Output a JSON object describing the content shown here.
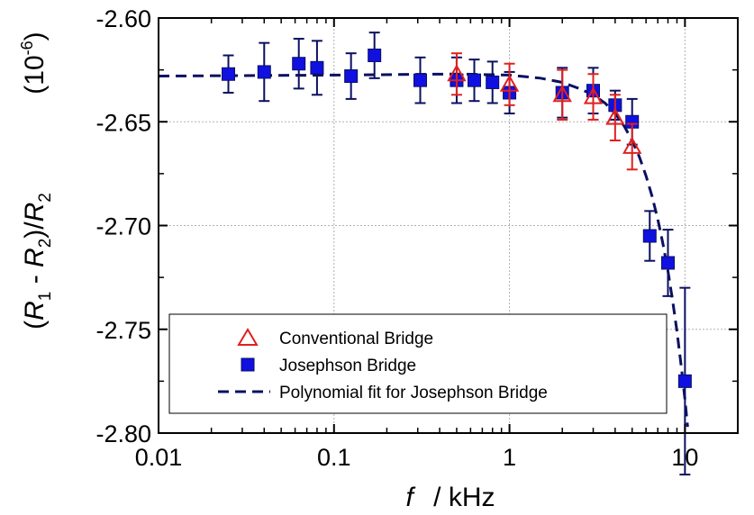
{
  "chart_data": {
    "type": "scatter",
    "x_scale": "log",
    "xlim": [
      0.01,
      20
    ],
    "ylim": [
      -2.8,
      -2.6
    ],
    "grid": true,
    "x_ticks": [
      {
        "value": 0.01,
        "label": "0.01"
      },
      {
        "value": 0.1,
        "label": "0.1"
      },
      {
        "value": 1,
        "label": "1"
      },
      {
        "value": 10,
        "label": "10"
      }
    ],
    "y_ticks": [
      {
        "value": -2.6,
        "label": "-2.60"
      },
      {
        "value": -2.65,
        "label": "-2.65"
      },
      {
        "value": -2.7,
        "label": "-2.70"
      },
      {
        "value": -2.75,
        "label": "-2.75"
      },
      {
        "value": -2.8,
        "label": "-2.80"
      }
    ],
    "xlabel": {
      "var": "f",
      "unit": "/ kHz"
    },
    "ylabel": {
      "open": "(",
      "r1": "R",
      "sub1": "1",
      "minus": " - ",
      "r2": "R",
      "sub2": "2",
      "close": ")/",
      "r3": "R",
      "sub3": "2"
    },
    "yunit": {
      "base": "(10",
      "exp": "-6",
      "close": ")"
    },
    "legend_position": "bottom-left",
    "series": [
      {
        "name": "Conventional Bridge",
        "marker": "open-triangle",
        "color": "#e02020",
        "points": [
          {
            "x": 0.5,
            "y": -2.627,
            "err": 0.01
          },
          {
            "x": 1.0,
            "y": -2.632,
            "err": 0.01
          },
          {
            "x": 2.0,
            "y": -2.637,
            "err": 0.012
          },
          {
            "x": 3.0,
            "y": -2.638,
            "err": 0.011
          },
          {
            "x": 4.0,
            "y": -2.648,
            "err": 0.011
          },
          {
            "x": 5.0,
            "y": -2.662,
            "err": 0.011
          }
        ]
      },
      {
        "name": "Josephson Bridge",
        "marker": "filled-square",
        "color": "#1010e0",
        "points": [
          {
            "x": 0.025,
            "y": -2.627,
            "err": 0.009
          },
          {
            "x": 0.04,
            "y": -2.626,
            "err": 0.014
          },
          {
            "x": 0.063,
            "y": -2.622,
            "err": 0.012
          },
          {
            "x": 0.08,
            "y": -2.624,
            "err": 0.013
          },
          {
            "x": 0.125,
            "y": -2.628,
            "err": 0.011
          },
          {
            "x": 0.17,
            "y": -2.618,
            "err": 0.011
          },
          {
            "x": 0.31,
            "y": -2.63,
            "err": 0.011
          },
          {
            "x": 0.5,
            "y": -2.63,
            "err": 0.011
          },
          {
            "x": 0.63,
            "y": -2.63,
            "err": 0.01
          },
          {
            "x": 0.8,
            "y": -2.631,
            "err": 0.01
          },
          {
            "x": 1.0,
            "y": -2.636,
            "err": 0.01
          },
          {
            "x": 2.0,
            "y": -2.636,
            "err": 0.012
          },
          {
            "x": 3.0,
            "y": -2.635,
            "err": 0.011
          },
          {
            "x": 4.0,
            "y": -2.642,
            "err": 0.007
          },
          {
            "x": 5.0,
            "y": -2.65,
            "err": 0.011
          },
          {
            "x": 6.3,
            "y": -2.705,
            "err": 0.012
          },
          {
            "x": 8.0,
            "y": -2.718,
            "err": 0.016
          },
          {
            "x": 10.0,
            "y": -2.775,
            "err": 0.045
          }
        ]
      },
      {
        "name": "Polynomial fit for Josephson Bridge",
        "marker": "dashed-line",
        "color": "#0a1060",
        "points": [
          {
            "x": 0.01,
            "y": -2.628
          },
          {
            "x": 0.1,
            "y": -2.6275
          },
          {
            "x": 0.5,
            "y": -2.627
          },
          {
            "x": 1.0,
            "y": -2.6275
          },
          {
            "x": 1.5,
            "y": -2.629
          },
          {
            "x": 2.0,
            "y": -2.631
          },
          {
            "x": 2.5,
            "y": -2.634
          },
          {
            "x": 3.0,
            "y": -2.637
          },
          {
            "x": 3.5,
            "y": -2.641
          },
          {
            "x": 4.0,
            "y": -2.646
          },
          {
            "x": 4.5,
            "y": -2.652
          },
          {
            "x": 5.0,
            "y": -2.659
          },
          {
            "x": 5.5,
            "y": -2.667
          },
          {
            "x": 6.0,
            "y": -2.676
          },
          {
            "x": 6.5,
            "y": -2.686
          },
          {
            "x": 7.0,
            "y": -2.697
          },
          {
            "x": 7.5,
            "y": -2.709
          },
          {
            "x": 8.0,
            "y": -2.722
          },
          {
            "x": 8.5,
            "y": -2.736
          },
          {
            "x": 9.0,
            "y": -2.751
          },
          {
            "x": 9.5,
            "y": -2.767
          },
          {
            "x": 10.0,
            "y": -2.784
          },
          {
            "x": 10.35,
            "y": -2.797
          }
        ]
      }
    ]
  }
}
